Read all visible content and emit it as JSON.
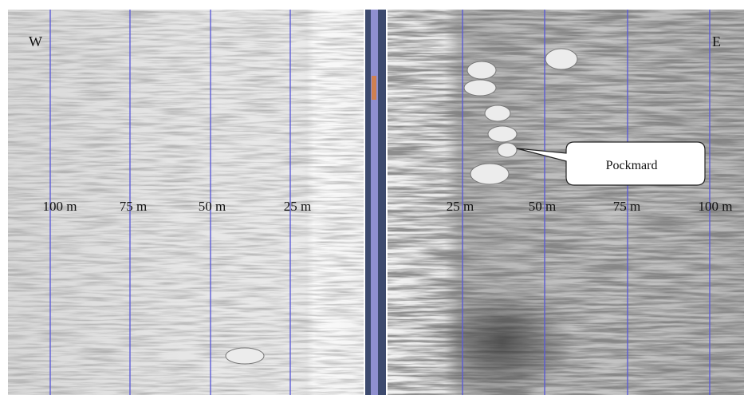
{
  "left_panel": {
    "direction": "W",
    "range_labels": [
      "100 m",
      "75 m",
      "50 m",
      "25 m"
    ]
  },
  "right_panel": {
    "direction": "E",
    "range_labels": [
      "25 m",
      "50 m",
      "75 m",
      "100 m"
    ]
  },
  "callout": "Pockmard"
}
